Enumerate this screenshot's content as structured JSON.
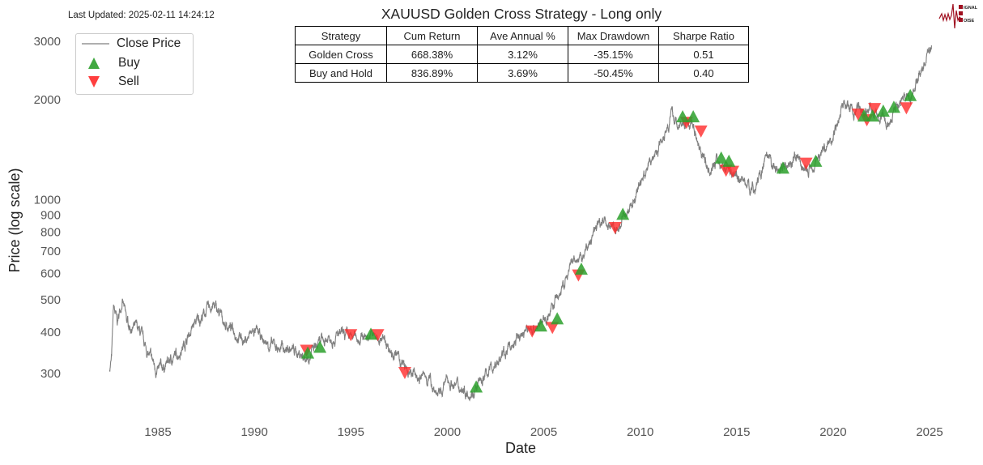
{
  "header": {
    "last_updated": "Last Updated: 2025-02-11 14:24:12",
    "logo_text": "SIGNAL 2 NOISE"
  },
  "stats_table": {
    "columns": [
      "Strategy",
      "Cum Return",
      "Ave Annual %",
      "Max Drawdown",
      "Sharpe Ratio"
    ],
    "rows": [
      [
        "Golden Cross",
        "668.38%",
        "3.12%",
        "-35.15%",
        "0.51"
      ],
      [
        "Buy and Hold",
        "836.89%",
        "3.69%",
        "-50.45%",
        "0.40"
      ]
    ]
  },
  "legend": {
    "items": [
      {
        "label": "Close Price"
      },
      {
        "label": "Buy"
      },
      {
        "label": "Sell"
      }
    ]
  },
  "chart_data": {
    "type": "line",
    "title": "XAUUSD Golden Cross Strategy - Long only",
    "xlabel": "Date",
    "ylabel": "Price (log scale)",
    "yscale": "log",
    "xlim": [
      1981,
      2026.5
    ],
    "ylim": [
      214,
      3400
    ],
    "grid": false,
    "legend_position": "top-left",
    "x_ticks": [
      "1985",
      "1990",
      "1995",
      "2000",
      "2005",
      "2010",
      "2015",
      "2020",
      "2025"
    ],
    "y_ticks": [
      "300",
      "400",
      "500",
      "600",
      "700",
      "800",
      "900",
      "1000",
      "2000",
      "3000"
    ],
    "colors": {
      "close": "#7f7f7f",
      "buy": "#2ca02c",
      "sell": "#ff2a2a"
    },
    "close_price": {
      "name": "Close Price",
      "points": [
        [
          1982.5,
          310
        ],
        [
          1982.6,
          330
        ],
        [
          1982.7,
          470
        ],
        [
          1982.9,
          420
        ],
        [
          1983.15,
          500
        ],
        [
          1983.4,
          420
        ],
        [
          1984.0,
          400
        ],
        [
          1984.5,
          340
        ],
        [
          1985.0,
          300
        ],
        [
          1985.5,
          320
        ],
        [
          1986.0,
          340
        ],
        [
          1986.5,
          380
        ],
        [
          1986.9,
          420
        ],
        [
          1987.85,
          480
        ],
        [
          1988.5,
          420
        ],
        [
          1989.0,
          400
        ],
        [
          1989.5,
          375
        ],
        [
          1990.0,
          400
        ],
        [
          1990.5,
          370
        ],
        [
          1991.0,
          360
        ],
        [
          1992.0,
          350
        ],
        [
          1992.7,
          335
        ],
        [
          1993.3,
          360
        ],
        [
          1994.0,
          390
        ],
        [
          1995.0,
          380
        ],
        [
          1996.0,
          390
        ],
        [
          1996.8,
          370
        ],
        [
          1997.5,
          330
        ],
        [
          1998.0,
          295
        ],
        [
          1999.0,
          290
        ],
        [
          1999.6,
          255
        ],
        [
          2000.0,
          285
        ],
        [
          2001.0,
          265
        ],
        [
          2001.5,
          268
        ],
        [
          2002.0,
          295
        ],
        [
          2003.0,
          345
        ],
        [
          2004.0,
          400
        ],
        [
          2005.0,
          425
        ],
        [
          2006.0,
          540
        ],
        [
          2006.5,
          640
        ],
        [
          2007.0,
          660
        ],
        [
          2008.0,
          880
        ],
        [
          2008.8,
          800
        ],
        [
          2009.5,
          950
        ],
        [
          2010.0,
          1120
        ],
        [
          2010.8,
          1380
        ],
        [
          2011.6,
          1800
        ],
        [
          2012.0,
          1660
        ],
        [
          2012.7,
          1700
        ],
        [
          2013.5,
          1250
        ],
        [
          2014.0,
          1290
        ],
        [
          2015.0,
          1180
        ],
        [
          2015.9,
          1070
        ],
        [
          2016.5,
          1300
        ],
        [
          2017.0,
          1220
        ],
        [
          2018.0,
          1320
        ],
        [
          2018.7,
          1200
        ],
        [
          2019.0,
          1300
        ],
        [
          2019.8,
          1480
        ],
        [
          2020.6,
          1950
        ],
        [
          2021.0,
          1830
        ],
        [
          2022.0,
          1850
        ],
        [
          2022.8,
          1650
        ],
        [
          2023.3,
          1950
        ],
        [
          2024.0,
          2030
        ],
        [
          2024.5,
          2380
        ],
        [
          2024.8,
          2650
        ],
        [
          2025.1,
          2900
        ]
      ]
    },
    "buy_signals": [
      [
        1992.77,
        344
      ],
      [
        1993.4,
        358
      ],
      [
        1996.04,
        392
      ],
      [
        2001.5,
        272
      ],
      [
        2004.85,
        415
      ],
      [
        2005.7,
        436
      ],
      [
        2006.95,
        615
      ],
      [
        2009.1,
        900
      ],
      [
        2012.2,
        1770
      ],
      [
        2012.75,
        1770
      ],
      [
        2014.2,
        1330
      ],
      [
        2014.6,
        1300
      ],
      [
        2017.4,
        1240
      ],
      [
        2019.1,
        1300
      ],
      [
        2021.6,
        1780
      ],
      [
        2022.05,
        1780
      ],
      [
        2022.6,
        1840
      ],
      [
        2023.15,
        1890
      ],
      [
        2024.0,
        2050
      ]
    ],
    "sell_signals": [
      [
        1992.7,
        350
      ],
      [
        1995.0,
        390
      ],
      [
        1996.4,
        390
      ],
      [
        1997.8,
        300
      ],
      [
        2004.4,
        400
      ],
      [
        2005.45,
        410
      ],
      [
        2006.8,
        590
      ],
      [
        2008.7,
        820
      ],
      [
        2012.4,
        1700
      ],
      [
        2013.15,
        1600
      ],
      [
        2014.45,
        1220
      ],
      [
        2014.8,
        1210
      ],
      [
        2018.6,
        1280
      ],
      [
        2021.3,
        1800
      ],
      [
        2021.75,
        1730
      ],
      [
        2022.15,
        1870
      ],
      [
        2023.8,
        1880
      ]
    ]
  }
}
